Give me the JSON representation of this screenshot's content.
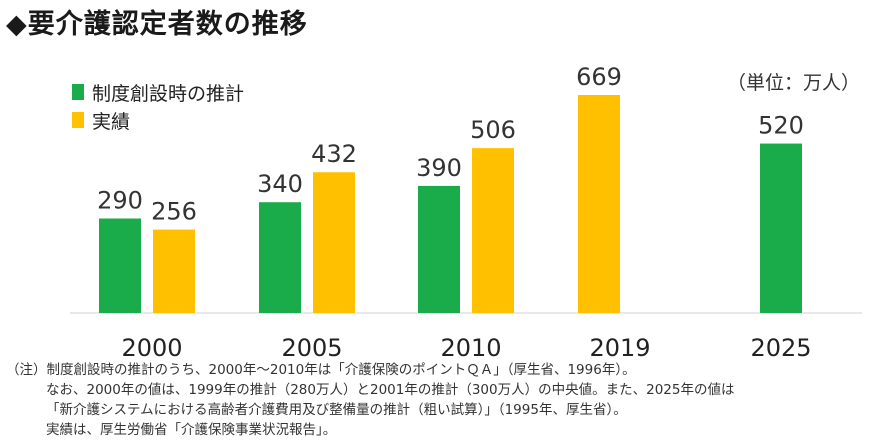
{
  "title": "◆要介護認定者数の推移",
  "unit_label": "（単位：万人）",
  "legend": [
    {
      "label": "制度創設時の推計",
      "color": "#1aab4a"
    },
    {
      "label": "実績",
      "color": "#ffc000"
    }
  ],
  "chart_data": {
    "type": "bar",
    "title": "◆要介護認定者数の推移",
    "ylabel": "（単位：万人）",
    "categories": [
      "2000",
      "2005",
      "2010",
      "2019",
      "2025"
    ],
    "series": [
      {
        "name": "制度創設時の推計",
        "color": "#1aab4a",
        "values": [
          290,
          340,
          390,
          null,
          520
        ]
      },
      {
        "name": "実績",
        "color": "#ffc000",
        "values": [
          256,
          432,
          506,
          669,
          null
        ]
      }
    ],
    "ylim": [
      0,
      700
    ],
    "grid": false,
    "legend_position": "top-left"
  },
  "notes": [
    "（注）制度創設時の推計のうち、2000年～2010年は「介護保険のポイントＱＡ」（厚生省、1996年）。",
    "なお、2000年の値は、1999年の推計（280万人）と2001年の推計（300万人）の中央値。また、2025年の値は",
    "「新介護システムにおける高齢者介護費用及び整備量の推計（粗い試算）」（1995年、厚生省）。",
    "実績は、厚生労働省「介護保険事業状況報告」。"
  ]
}
